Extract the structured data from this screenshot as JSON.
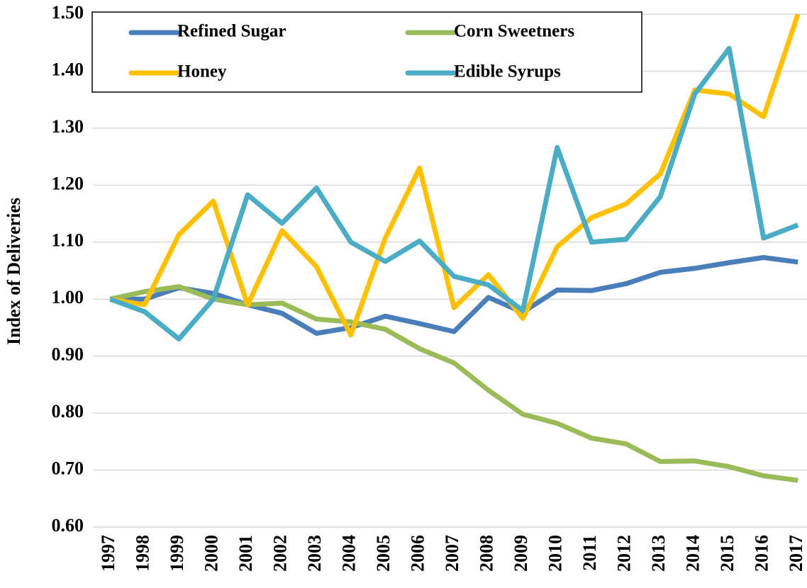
{
  "chart_data": {
    "type": "line",
    "y_label": "Index of Deliveries",
    "categories": [
      "1997",
      "1998",
      "1999",
      "2000",
      "2001",
      "2002",
      "2003",
      "2004",
      "2005",
      "2006",
      "2007",
      "2008",
      "2009",
      "2010",
      "2011",
      "2012",
      "2013",
      "2014",
      "2015",
      "2016",
      "2017"
    ],
    "series": [
      {
        "name": "Refined Sugar",
        "color": "#4a7ebb",
        "values": [
          1.0,
          1.0,
          1.02,
          1.01,
          0.99,
          0.975,
          0.94,
          0.95,
          0.97,
          0.957,
          0.943,
          1.003,
          0.977,
          1.016,
          1.015,
          1.027,
          1.047,
          1.054,
          1.064,
          1.073,
          1.065
        ]
      },
      {
        "name": "Corn Sweetners",
        "color": "#9bbb59",
        "values": [
          1.0,
          1.013,
          1.022,
          1.0,
          0.99,
          0.993,
          0.965,
          0.96,
          0.947,
          0.913,
          0.888,
          0.84,
          0.798,
          0.782,
          0.756,
          0.746,
          0.715,
          0.716,
          0.706,
          0.69,
          0.682
        ]
      },
      {
        "name": "Honey",
        "color": "#ffc000",
        "values": [
          1.0,
          0.99,
          1.113,
          1.172,
          0.99,
          1.12,
          1.057,
          0.937,
          1.107,
          1.23,
          0.985,
          1.043,
          0.966,
          1.092,
          1.143,
          1.167,
          1.22,
          1.367,
          1.36,
          1.32,
          1.5
        ]
      },
      {
        "name": "Edible Syrups",
        "color": "#4bacc6",
        "values": [
          1.0,
          0.978,
          0.93,
          1.0,
          1.183,
          1.133,
          1.195,
          1.1,
          1.066,
          1.102,
          1.04,
          1.025,
          0.98,
          1.266,
          1.1,
          1.105,
          1.18,
          1.36,
          1.44,
          1.107,
          1.13
        ]
      }
    ],
    "ylim": [
      0.6,
      1.5
    ],
    "yticks": [
      {
        "value": 0.6,
        "label": "0.60"
      },
      {
        "value": 0.7,
        "label": "0.70"
      },
      {
        "value": 0.8,
        "label": "0.80"
      },
      {
        "value": 0.9,
        "label": "0.90"
      },
      {
        "value": 1.0,
        "label": "1.00"
      },
      {
        "value": 1.1,
        "label": "1.10"
      },
      {
        "value": 1.2,
        "label": "1.20"
      },
      {
        "value": 1.3,
        "label": "1.30"
      },
      {
        "value": 1.4,
        "label": "1.40"
      },
      {
        "value": 1.5,
        "label": "1.50"
      }
    ],
    "grid": true,
    "legend": "top"
  }
}
